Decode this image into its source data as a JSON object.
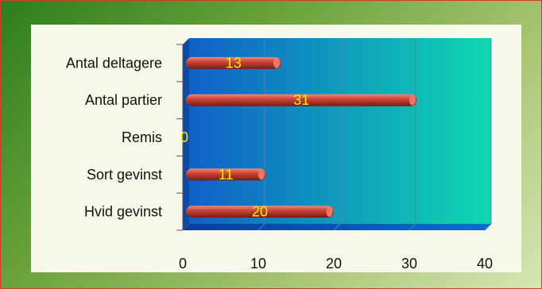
{
  "chart_data": {
    "type": "bar",
    "orientation": "horizontal",
    "categories": [
      "Antal deltagere",
      "Antal partier",
      "Remis",
      "Sort gevinst",
      "Hvid gevinst"
    ],
    "values": [
      13,
      31,
      0,
      11,
      20
    ],
    "xlim": [
      0,
      40
    ],
    "xticks": [
      "0",
      "10",
      "20",
      "30",
      "40"
    ],
    "grid": true,
    "style": "3d-cylinder",
    "colors": {
      "bar": "#c0392b",
      "label": "#ffee00",
      "plot_start": "#1060c8",
      "plot_end": "#10d8b0"
    }
  }
}
